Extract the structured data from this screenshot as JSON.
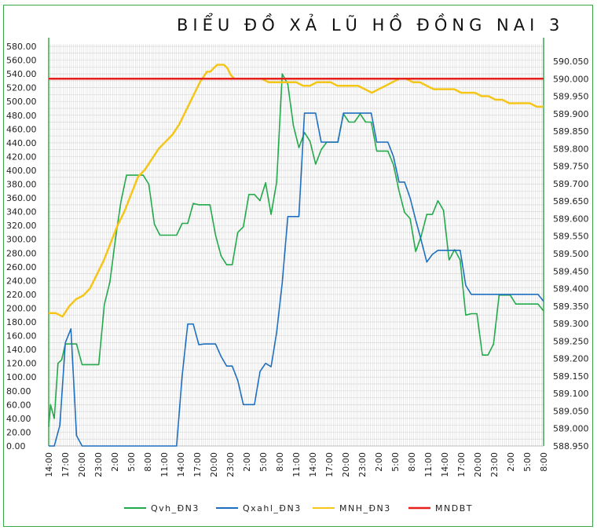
{
  "chart_data": {
    "type": "line",
    "title": "BIỂU ĐỒ XẢ LŨ HỒ ĐỒNG NAI 3",
    "x_labels": [
      "14:00",
      "17:00",
      "20:00",
      "23:00",
      "2:00",
      "5:00",
      "8:00",
      "11:00",
      "14:00",
      "17:00",
      "20:00",
      "23:00",
      "2:00",
      "5:00",
      "8:00",
      "11:00",
      "14:00",
      "17:00",
      "20:00",
      "23:00",
      "2:00",
      "5:00",
      "8:00",
      "11:00",
      "14:00",
      "17:00",
      "20:00",
      "23:00",
      "2:00",
      "5:00",
      "8:00"
    ],
    "y_left": {
      "min": 0,
      "max": 580,
      "step": 20,
      "decimals": 2
    },
    "y_right": {
      "min": 588.95,
      "max": 590.05,
      "step": 0.05,
      "decimals": 3,
      "labels_top_offset": 1
    },
    "grid": true,
    "legend_position": "bottom",
    "colors": {
      "frame": "#3aa84a",
      "grid": "#d9d9d9",
      "left_axis": "#3aa84a",
      "right_axis": "#3aa84a"
    },
    "series": [
      {
        "name": "Qvh_ĐN3",
        "color": "#22aa4a",
        "axis": "left",
        "values": [
          [
            0,
            28
          ],
          [
            0.33,
            60
          ],
          [
            1,
            40
          ],
          [
            1.67,
            120
          ],
          [
            2.33,
            125
          ],
          [
            3,
            148
          ],
          [
            4,
            148
          ],
          [
            5,
            148
          ],
          [
            6,
            118
          ],
          [
            7,
            118
          ],
          [
            8,
            118
          ],
          [
            9,
            118
          ],
          [
            10,
            205
          ],
          [
            11,
            238
          ],
          [
            12,
            300
          ],
          [
            13,
            355
          ],
          [
            14,
            393
          ],
          [
            15,
            393
          ],
          [
            16,
            393
          ],
          [
            17,
            393
          ],
          [
            18,
            380
          ],
          [
            19,
            322
          ],
          [
            20,
            306
          ],
          [
            21,
            306
          ],
          [
            22,
            306
          ],
          [
            23,
            306
          ],
          [
            24,
            323
          ],
          [
            25,
            323
          ],
          [
            26,
            352
          ],
          [
            27,
            350
          ],
          [
            28,
            350
          ],
          [
            29,
            350
          ],
          [
            30,
            306
          ],
          [
            31,
            276
          ],
          [
            32,
            263
          ],
          [
            33,
            263
          ],
          [
            34,
            310
          ],
          [
            35,
            318
          ],
          [
            36,
            365
          ],
          [
            37,
            365
          ],
          [
            38,
            356
          ],
          [
            39,
            382
          ],
          [
            40,
            336
          ],
          [
            41,
            383
          ],
          [
            42,
            540
          ],
          [
            43,
            525
          ],
          [
            44,
            465
          ],
          [
            45,
            433
          ],
          [
            46,
            455
          ],
          [
            47,
            442
          ],
          [
            48,
            409
          ],
          [
            49,
            430
          ],
          [
            50,
            441
          ],
          [
            51,
            441
          ],
          [
            52,
            441
          ],
          [
            53,
            482
          ],
          [
            54,
            470
          ],
          [
            55,
            470
          ],
          [
            56,
            482
          ],
          [
            57,
            470
          ],
          [
            58,
            470
          ],
          [
            59,
            428
          ],
          [
            60,
            428
          ],
          [
            61,
            428
          ],
          [
            62,
            408
          ],
          [
            63,
            370
          ],
          [
            64,
            339
          ],
          [
            65,
            330
          ],
          [
            66,
            282
          ],
          [
            67,
            305
          ],
          [
            68,
            336
          ],
          [
            69,
            336
          ],
          [
            70,
            356
          ],
          [
            71,
            342
          ],
          [
            72,
            270
          ],
          [
            73,
            285
          ],
          [
            74,
            270
          ],
          [
            75,
            190
          ],
          [
            76,
            192
          ],
          [
            77,
            192
          ],
          [
            78,
            132
          ],
          [
            79,
            132
          ],
          [
            80,
            148
          ],
          [
            81,
            219
          ],
          [
            82,
            219
          ],
          [
            83,
            219
          ],
          [
            84,
            206
          ],
          [
            85,
            206
          ],
          [
            86,
            206
          ],
          [
            87,
            206
          ],
          [
            88,
            206
          ],
          [
            89,
            196
          ]
        ]
      },
      {
        "name": "Qxahl_ĐN3",
        "color": "#1f6fbf",
        "axis": "left",
        "values": [
          [
            0,
            0
          ],
          [
            1,
            0
          ],
          [
            2,
            30
          ],
          [
            3,
            150
          ],
          [
            4,
            170
          ],
          [
            5,
            15
          ],
          [
            6,
            0
          ],
          [
            7,
            0
          ],
          [
            8,
            0
          ],
          [
            9,
            0
          ],
          [
            10,
            0
          ],
          [
            11,
            0
          ],
          [
            12,
            0
          ],
          [
            13,
            0
          ],
          [
            14,
            0
          ],
          [
            15,
            0
          ],
          [
            16,
            0
          ],
          [
            17,
            0
          ],
          [
            18,
            0
          ],
          [
            19,
            0
          ],
          [
            20,
            0
          ],
          [
            21,
            0
          ],
          [
            22,
            0
          ],
          [
            23,
            0
          ],
          [
            24,
            102
          ],
          [
            25,
            177
          ],
          [
            26,
            177
          ],
          [
            27,
            147
          ],
          [
            28,
            148
          ],
          [
            29,
            148
          ],
          [
            30,
            148
          ],
          [
            31,
            130
          ],
          [
            32,
            116
          ],
          [
            33,
            116
          ],
          [
            34,
            95
          ],
          [
            35,
            60
          ],
          [
            36,
            60
          ],
          [
            37,
            60
          ],
          [
            38,
            108
          ],
          [
            39,
            120
          ],
          [
            40,
            115
          ],
          [
            41,
            165
          ],
          [
            42,
            237
          ],
          [
            43,
            333
          ],
          [
            44,
            333
          ],
          [
            45,
            333
          ],
          [
            46,
            483
          ],
          [
            47,
            483
          ],
          [
            48,
            483
          ],
          [
            49,
            441
          ],
          [
            50,
            441
          ],
          [
            51,
            441
          ],
          [
            52,
            441
          ],
          [
            53,
            483
          ],
          [
            54,
            483
          ],
          [
            55,
            483
          ],
          [
            56,
            483
          ],
          [
            57,
            483
          ],
          [
            58,
            483
          ],
          [
            59,
            441
          ],
          [
            60,
            441
          ],
          [
            61,
            441
          ],
          [
            62,
            420
          ],
          [
            63,
            383
          ],
          [
            64,
            383
          ],
          [
            65,
            360
          ],
          [
            66,
            328
          ],
          [
            67,
            298
          ],
          [
            68,
            267
          ],
          [
            69,
            278
          ],
          [
            70,
            284
          ],
          [
            71,
            284
          ],
          [
            72,
            284
          ],
          [
            73,
            284
          ],
          [
            74,
            284
          ],
          [
            75,
            233
          ],
          [
            76,
            220
          ],
          [
            77,
            220
          ],
          [
            78,
            220
          ],
          [
            79,
            220
          ],
          [
            80,
            220
          ],
          [
            81,
            220
          ],
          [
            82,
            220
          ],
          [
            83,
            220
          ],
          [
            84,
            220
          ],
          [
            85,
            220
          ],
          [
            86,
            220
          ],
          [
            87,
            220
          ],
          [
            88,
            220
          ],
          [
            89,
            210
          ]
        ]
      },
      {
        "name": "MNH_ĐN3",
        "color": "#f5c518",
        "axis": "right",
        "values": [
          [
            0,
            589.33
          ],
          [
            2,
            589.33
          ],
          [
            4,
            589.32
          ],
          [
            6,
            589.35
          ],
          [
            8,
            589.37
          ],
          [
            10,
            589.38
          ],
          [
            12,
            589.4
          ],
          [
            14,
            589.44
          ],
          [
            16,
            589.48
          ],
          [
            18,
            589.53
          ],
          [
            20,
            589.58
          ],
          [
            22,
            589.62
          ],
          [
            24,
            589.67
          ],
          [
            26,
            589.72
          ],
          [
            28,
            589.74
          ],
          [
            30,
            589.77
          ],
          [
            32,
            589.8
          ],
          [
            34,
            589.82
          ],
          [
            36,
            589.84
          ],
          [
            38,
            589.87
          ],
          [
            40,
            589.91
          ],
          [
            42,
            589.95
          ],
          [
            44,
            589.99
          ],
          [
            46,
            590.02
          ],
          [
            47,
            590.02
          ],
          [
            48,
            590.03
          ],
          [
            49,
            590.04
          ],
          [
            50,
            590.04
          ],
          [
            51,
            590.04
          ],
          [
            52,
            590.03
          ],
          [
            53,
            590.01
          ],
          [
            54,
            590.0
          ],
          [
            56,
            590.0
          ],
          [
            58,
            590.0
          ],
          [
            60,
            590.0
          ],
          [
            62,
            590.0
          ],
          [
            64,
            589.99
          ],
          [
            66,
            589.99
          ],
          [
            68,
            589.99
          ],
          [
            70,
            589.99
          ],
          [
            72,
            589.99
          ],
          [
            74,
            589.98
          ],
          [
            76,
            589.98
          ],
          [
            78,
            589.99
          ],
          [
            80,
            589.99
          ],
          [
            82,
            589.99
          ],
          [
            84,
            589.98
          ],
          [
            86,
            589.98
          ],
          [
            88,
            589.98
          ],
          [
            90,
            589.98
          ],
          [
            92,
            589.97
          ],
          [
            94,
            589.96
          ],
          [
            96,
            589.97
          ],
          [
            98,
            589.98
          ],
          [
            100,
            589.99
          ],
          [
            102,
            590.0
          ],
          [
            104,
            590.0
          ],
          [
            106,
            589.99
          ],
          [
            108,
            589.99
          ],
          [
            110,
            589.98
          ],
          [
            112,
            589.97
          ],
          [
            114,
            589.97
          ],
          [
            116,
            589.97
          ],
          [
            118,
            589.97
          ],
          [
            120,
            589.96
          ],
          [
            122,
            589.96
          ],
          [
            124,
            589.96
          ],
          [
            126,
            589.95
          ],
          [
            128,
            589.95
          ],
          [
            130,
            589.94
          ],
          [
            132,
            589.94
          ],
          [
            134,
            589.93
          ],
          [
            136,
            589.93
          ],
          [
            138,
            589.93
          ],
          [
            140,
            589.93
          ],
          [
            142,
            589.92
          ],
          [
            144,
            589.92
          ]
        ]
      },
      {
        "name": "MNDBT",
        "color": "#e8201c",
        "axis": "right",
        "values": [
          [
            0,
            590.0
          ],
          [
            1,
            590.0
          ]
        ]
      }
    ]
  }
}
